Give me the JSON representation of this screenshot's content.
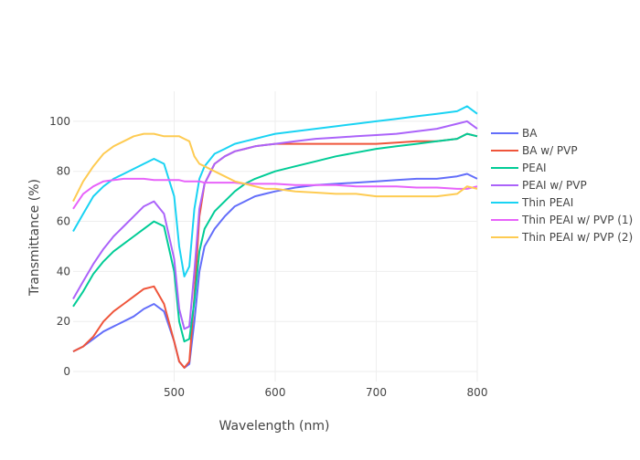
{
  "chart_data": {
    "type": "line",
    "title": "",
    "xlabel": "Wavelength (nm)",
    "ylabel": "Transmittance (%)",
    "xlim": [
      400,
      800
    ],
    "ylim": [
      -4,
      112
    ],
    "x_ticks": [
      500,
      600,
      700,
      800
    ],
    "y_ticks": [
      0,
      20,
      40,
      60,
      80,
      100
    ],
    "grid": true,
    "legend_position": "right",
    "x": [
      400,
      410,
      420,
      430,
      440,
      450,
      460,
      470,
      480,
      490,
      500,
      505,
      510,
      515,
      520,
      525,
      530,
      540,
      550,
      560,
      570,
      580,
      590,
      600,
      620,
      640,
      660,
      680,
      700,
      720,
      740,
      760,
      780,
      790,
      800
    ],
    "series": [
      {
        "name": "BA",
        "color": "#636efa",
        "values": [
          8,
          10,
          13,
          16,
          18,
          20,
          22,
          25,
          27,
          24,
          12,
          4,
          1.5,
          3,
          20,
          40,
          50,
          57,
          62,
          66,
          68,
          70,
          71,
          72,
          73.5,
          74.5,
          75,
          75.5,
          76,
          76.5,
          77,
          77,
          78,
          79,
          77
        ]
      },
      {
        "name": "BA w/ PVP",
        "color": "#ef553b",
        "values": [
          8,
          10,
          14,
          20,
          24,
          27,
          30,
          33,
          34,
          27,
          12,
          4,
          1.5,
          4,
          30,
          62,
          75,
          83,
          86,
          88,
          89,
          90,
          90.5,
          91,
          91,
          91,
          91,
          91,
          91,
          91.5,
          92,
          92,
          93,
          95,
          94
        ]
      },
      {
        "name": "PEAI",
        "color": "#00cc96",
        "values": [
          26,
          32,
          39,
          44,
          48,
          51,
          54,
          57,
          60,
          58,
          40,
          20,
          12,
          13,
          28,
          48,
          57,
          64,
          68,
          72,
          75,
          77,
          78.5,
          80,
          82,
          84,
          86,
          87.5,
          89,
          90,
          91,
          92,
          93,
          95,
          94
        ]
      },
      {
        "name": "PEAI w/ PVP",
        "color": "#ab63fa",
        "values": [
          29,
          36,
          43,
          49,
          54,
          58,
          62,
          66,
          68,
          63,
          45,
          25,
          17,
          18,
          40,
          65,
          75,
          83,
          86,
          88,
          89,
          90,
          90.5,
          91,
          92,
          93,
          93.5,
          94,
          94.5,
          95,
          96,
          97,
          99,
          100,
          97
        ]
      },
      {
        "name": "Thin PEAI",
        "color": "#19d3f3",
        "values": [
          56,
          63,
          70,
          74,
          77,
          79,
          81,
          83,
          85,
          83,
          70,
          50,
          38,
          42,
          65,
          77,
          82,
          87,
          89,
          91,
          92,
          93,
          94,
          95,
          96,
          97,
          98,
          99,
          100,
          101,
          102,
          103,
          104,
          106,
          103
        ]
      },
      {
        "name": "Thin PEAI w/ PVP (1)",
        "color": "#e763fa",
        "values": [
          65,
          71,
          74,
          76,
          76.5,
          77,
          77,
          77,
          76.5,
          76.5,
          76.5,
          76.5,
          76,
          76,
          76,
          76,
          75.5,
          75.5,
          75.5,
          75.5,
          75,
          75,
          75,
          75,
          74.5,
          74.5,
          74.5,
          74,
          74,
          74,
          73.5,
          73.5,
          73,
          73,
          74
        ]
      },
      {
        "name": "Thin PEAI w/ PVP (2)",
        "color": "#fecb52",
        "values": [
          68,
          76,
          82,
          87,
          90,
          92,
          94,
          95,
          95,
          94,
          94,
          94,
          93,
          92,
          86,
          83,
          82,
          80,
          78,
          76,
          75,
          74,
          73,
          73,
          72,
          71.5,
          71,
          71,
          70,
          70,
          70,
          70,
          71,
          74,
          73
        ]
      }
    ]
  }
}
